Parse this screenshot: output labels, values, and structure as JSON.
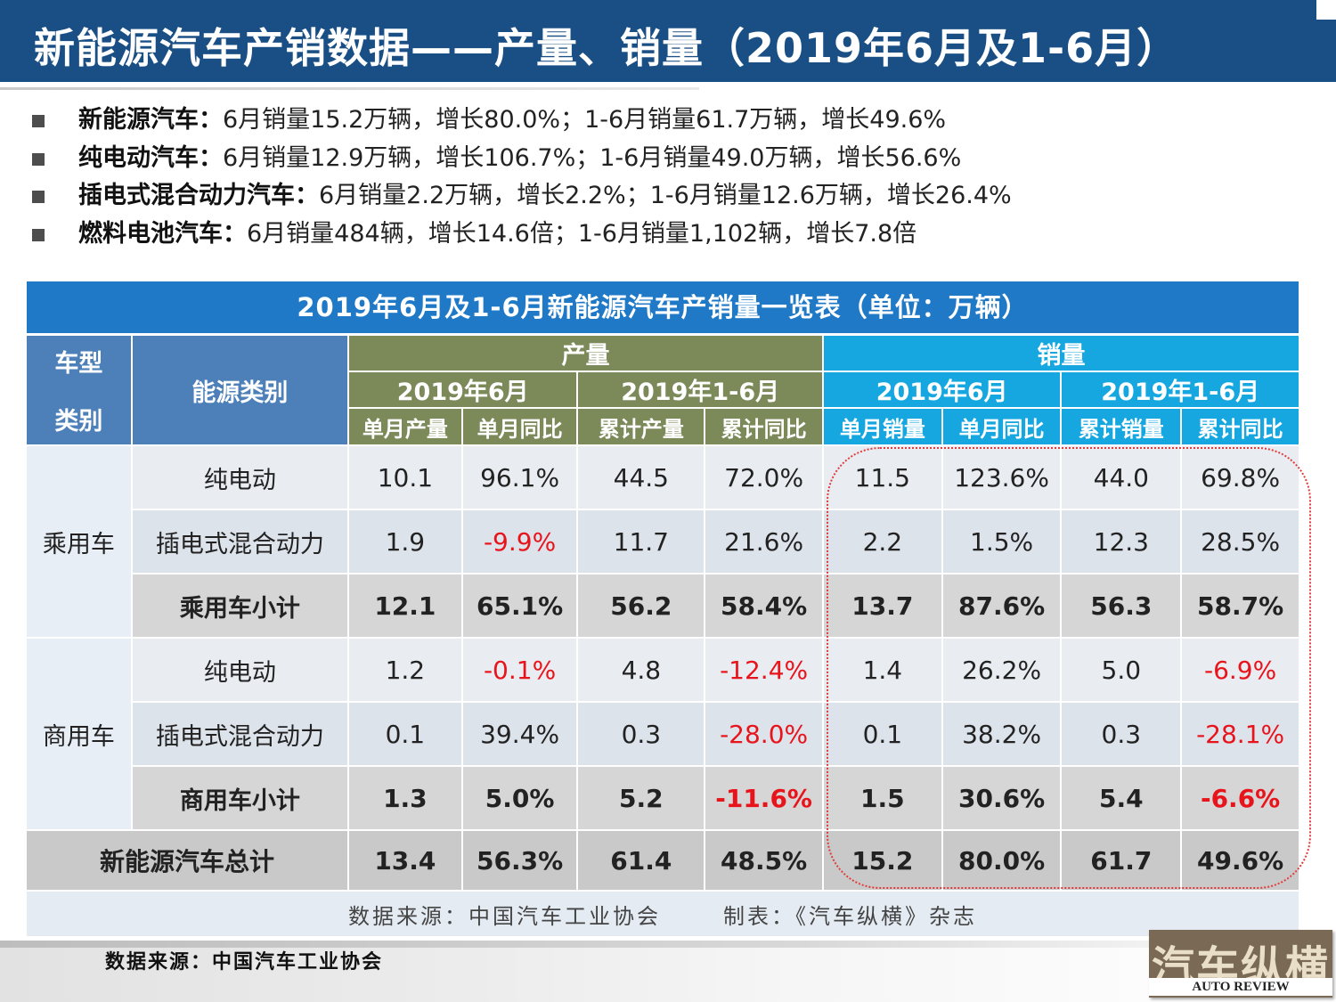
{
  "header": {
    "title": "新能源汽车产销数据——产量、销量（2019年6月及1-6月）"
  },
  "bullets": [
    {
      "label": "新能源汽车：",
      "text": "6月销量15.2万辆，增长80.0%；1-6月销量61.7万辆，增长49.6%"
    },
    {
      "label": "纯电动汽车：",
      "text": "6月销量12.9万辆，增长106.7%；1-6月销量49.0万辆，增长56.6%"
    },
    {
      "label": "插电式混合动力汽车：",
      "text": "6月销量2.2万辆，增长2.2%；1-6月销量12.6万辆，增长26.4%"
    },
    {
      "label": "燃料电池汽车：",
      "text": "6月销量484辆，增长14.6倍；1-6月销量1,102辆，增长7.8倍"
    }
  ],
  "table": {
    "title": "2019年6月及1-6月新能源汽车产销量一览表（单位：万辆）",
    "headers": {
      "vehicle_type_line1": "车型",
      "vehicle_type_line2": "类别",
      "energy_type": "能源类别",
      "production": "产量",
      "sales": "销量",
      "period_june": "2019年6月",
      "period_h1": "2019年1-6月",
      "prod_month": "单月产量",
      "prod_month_yoy": "单月同比",
      "prod_cum": "累计产量",
      "prod_cum_yoy": "累计同比",
      "sales_month": "单月销量",
      "sales_month_yoy": "单月同比",
      "sales_cum": "累计销量",
      "sales_cum_yoy": "累计同比"
    },
    "groups": [
      {
        "category": "乘用车",
        "rows": [
          {
            "type": "纯电动",
            "values": [
              "10.1",
              "96.1%",
              "44.5",
              "72.0%",
              "11.5",
              "123.6%",
              "44.0",
              "69.8%"
            ]
          },
          {
            "type": "插电式混合动力",
            "values": [
              "1.9",
              "-9.9%",
              "11.7",
              "21.6%",
              "2.2",
              "1.5%",
              "12.3",
              "28.5%"
            ]
          },
          {
            "type": "乘用车小计",
            "values": [
              "12.1",
              "65.1%",
              "56.2",
              "58.4%",
              "13.7",
              "87.6%",
              "56.3",
              "58.7%"
            ]
          }
        ]
      },
      {
        "category": "商用车",
        "rows": [
          {
            "type": "纯电动",
            "values": [
              "1.2",
              "-0.1%",
              "4.8",
              "-12.4%",
              "1.4",
              "26.2%",
              "5.0",
              "-6.9%"
            ]
          },
          {
            "type": "插电式混合动力",
            "values": [
              "0.1",
              "39.4%",
              "0.3",
              "-28.0%",
              "0.1",
              "38.2%",
              "0.3",
              "-28.1%"
            ]
          },
          {
            "type": "商用车小计",
            "values": [
              "1.3",
              "5.0%",
              "5.2",
              "-11.6%",
              "1.5",
              "30.6%",
              "5.4",
              "-6.6%"
            ]
          }
        ]
      }
    ],
    "total": {
      "label": "新能源汽车总计",
      "values": [
        "13.4",
        "56.3%",
        "61.4",
        "48.5%",
        "15.2",
        "80.0%",
        "61.7",
        "49.6%"
      ]
    },
    "source_note": "数据来源：中国汽车工业协会",
    "maker_note": "制表：《汽车纵横》杂志"
  },
  "footer": {
    "source": "数据来源：中国汽车工业协会",
    "logo_cn": "汽车纵横",
    "logo_en": "AUTO REVIEW"
  },
  "colors": {
    "header_bg": "#1a4f85",
    "table_title_bg": "#1f79c6",
    "production_header": "#7c8a5a",
    "sales_header": "#17a7e0",
    "negative": "#e8141b",
    "highlight": "#e23a3a"
  }
}
